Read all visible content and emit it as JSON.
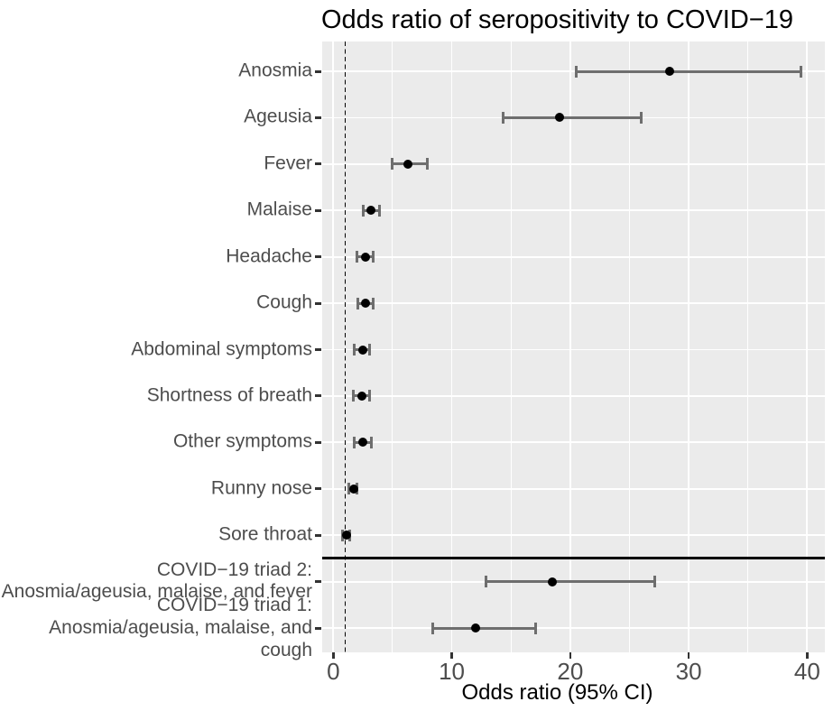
{
  "title": "Odds ratio of seropositivity to COVID−19",
  "chart_data": {
    "type": "scatter",
    "subtype": "horizontal-forest-plot",
    "title": "Odds ratio of seropositivity to COVID−19",
    "xlabel": "Odds ratio (95% CI)",
    "ylabel": "",
    "xlim": [
      -0.9,
      41.5
    ],
    "x_ticks": [
      0,
      10,
      20,
      30,
      40
    ],
    "x_minor_ticks": [
      5,
      15,
      25,
      35
    ],
    "grid": "white-on-grey-panel",
    "legend": false,
    "reference_line_x": 1,
    "separator_after_category_index": 10,
    "categories": [
      "Anosmia",
      "Ageusia",
      "Fever",
      "Malaise",
      "Headache",
      "Cough",
      "Abdominal symptoms",
      "Shortness of breath",
      "Other symptoms",
      "Runny nose",
      "Sore throat",
      "COVID−19 triad 2:\nAnosmia/ageusia, malaise, and fever",
      "COVID−19 triad 1:\nAnosmia/ageusia, malaise, and cough"
    ],
    "series": [
      {
        "name": "Odds ratio (95% CI)",
        "points": [
          {
            "or": 28.4,
            "ci_low": 20.5,
            "ci_high": 39.5
          },
          {
            "or": 19.1,
            "ci_low": 14.3,
            "ci_high": 26.0
          },
          {
            "or": 6.3,
            "ci_low": 5.0,
            "ci_high": 7.9
          },
          {
            "or": 3.2,
            "ci_low": 2.5,
            "ci_high": 3.9
          },
          {
            "or": 2.7,
            "ci_low": 2.0,
            "ci_high": 3.4
          },
          {
            "or": 2.7,
            "ci_low": 2.1,
            "ci_high": 3.4
          },
          {
            "or": 2.5,
            "ci_low": 1.8,
            "ci_high": 3.1
          },
          {
            "or": 2.4,
            "ci_low": 1.7,
            "ci_high": 3.1
          },
          {
            "or": 2.5,
            "ci_low": 1.8,
            "ci_high": 3.2
          },
          {
            "or": 1.7,
            "ci_low": 1.3,
            "ci_high": 2.0
          },
          {
            "or": 1.1,
            "ci_low": 0.8,
            "ci_high": 1.4
          },
          {
            "or": 18.5,
            "ci_low": 12.9,
            "ci_high": 27.1
          },
          {
            "or": 12.0,
            "ci_low": 8.4,
            "ci_high": 17.1
          }
        ]
      }
    ]
  },
  "colors": {
    "panel_background": "#EBEBEB",
    "gridline": "#FFFFFF",
    "error_bar": "#6E6E6E",
    "point": "#000000",
    "axis_text": "#4D4D4D",
    "tick_mark": "#333333",
    "title_text": "#000000",
    "reference_line": "#000000",
    "separator_line": "#000000"
  }
}
